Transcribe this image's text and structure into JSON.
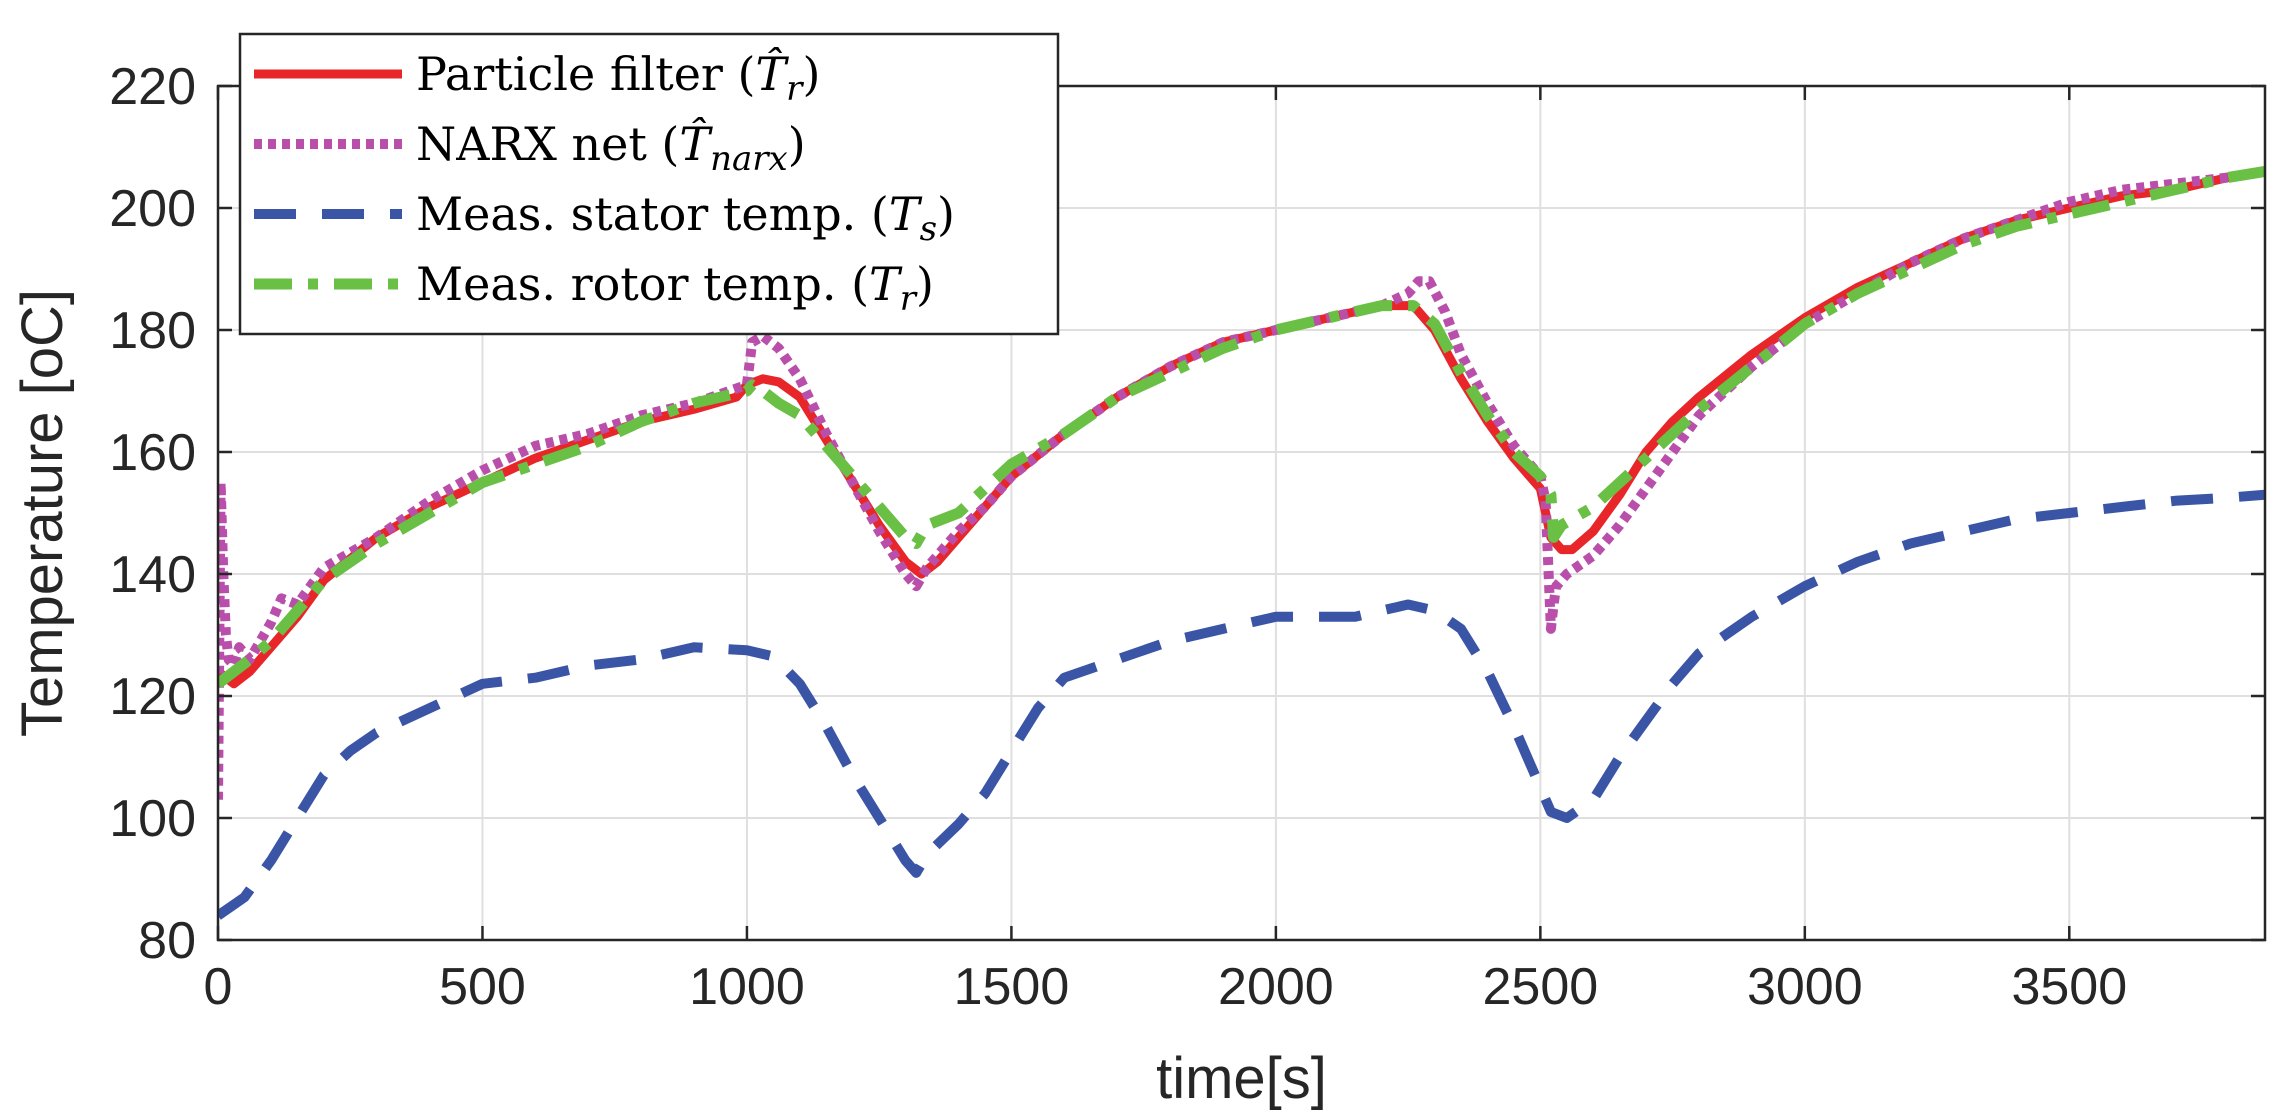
{
  "chart_data": {
    "type": "line",
    "title": "",
    "xlabel": "time[s]",
    "ylabel": "Temperature [oC]",
    "xlim": [
      0,
      3870
    ],
    "ylim": [
      80,
      220
    ],
    "xticks": [
      0,
      500,
      1000,
      1500,
      2000,
      2500,
      3000,
      3500
    ],
    "yticks": [
      80,
      100,
      120,
      140,
      160,
      180,
      200,
      220
    ],
    "grid": true,
    "legend_position": "top-left",
    "series": [
      {
        "name": "Particle filter",
        "legend_symbol": "T̂",
        "legend_subscript": "r",
        "color": "#e8262a",
        "style": "solid",
        "x": [
          0,
          30,
          60,
          100,
          150,
          200,
          300,
          400,
          500,
          600,
          700,
          800,
          900,
          980,
          1000,
          1030,
          1060,
          1100,
          1150,
          1200,
          1250,
          1300,
          1330,
          1360,
          1400,
          1450,
          1500,
          1600,
          1700,
          1800,
          1900,
          2000,
          2100,
          2200,
          2260,
          2300,
          2350,
          2400,
          2450,
          2500,
          2520,
          2540,
          2560,
          2600,
          2650,
          2700,
          2750,
          2800,
          2900,
          3000,
          3100,
          3200,
          3300,
          3400,
          3500,
          3600,
          3700,
          3800,
          3870
        ],
        "y": [
          124,
          122,
          124,
          128,
          133,
          139,
          146,
          151,
          155,
          159,
          162,
          165,
          167,
          169,
          171,
          172,
          171.5,
          169,
          162,
          155,
          148,
          142,
          140,
          142,
          146,
          151,
          156,
          163,
          169,
          174,
          178,
          180,
          182,
          184,
          184,
          180,
          172,
          165,
          159,
          154,
          146,
          144,
          144,
          147,
          153,
          160,
          165,
          169,
          176,
          182,
          187,
          191,
          195,
          198,
          200,
          202,
          203,
          205,
          206
        ]
      },
      {
        "name": "NARX net",
        "legend_symbol": "T̂",
        "legend_subscript": "narx",
        "color": "#b94fab",
        "style": "dotted",
        "x": [
          0,
          5,
          10,
          15,
          20,
          30,
          40,
          60,
          80,
          100,
          120,
          150,
          200,
          300,
          400,
          500,
          600,
          700,
          800,
          900,
          1000,
          1010,
          1030,
          1060,
          1100,
          1150,
          1200,
          1250,
          1300,
          1320,
          1340,
          1370,
          1400,
          1450,
          1500,
          1600,
          1700,
          1800,
          1900,
          2000,
          2100,
          2200,
          2250,
          2270,
          2290,
          2320,
          2350,
          2400,
          2450,
          2500,
          2510,
          2520,
          2525,
          2530,
          2550,
          2600,
          2650,
          2700,
          2750,
          2800,
          2900,
          3000,
          3100,
          3200,
          3300,
          3400,
          3500,
          3600,
          3700,
          3800,
          3870
        ],
        "y": [
          103,
          155,
          140,
          130,
          126,
          125,
          128,
          126,
          129,
          132,
          136,
          135,
          141,
          146,
          152,
          157,
          161,
          163,
          166,
          168,
          171,
          178,
          179,
          177,
          172,
          163,
          155,
          147,
          140,
          138,
          141,
          144,
          147,
          151,
          156,
          163,
          169,
          174,
          178,
          180,
          182,
          184,
          186,
          188,
          188,
          183,
          176,
          168,
          161,
          156,
          152,
          131,
          135,
          138,
          140,
          143,
          148,
          154,
          160,
          166,
          174,
          181,
          186,
          191,
          195,
          198,
          201,
          203,
          204,
          205,
          206
        ]
      },
      {
        "name": "Meas. stator temp.",
        "legend_symbol": "T",
        "legend_subscript": "s",
        "color": "#3b55a6",
        "style": "dashed",
        "x": [
          0,
          50,
          100,
          150,
          200,
          250,
          300,
          400,
          500,
          600,
          700,
          800,
          900,
          1000,
          1050,
          1100,
          1150,
          1200,
          1250,
          1300,
          1320,
          1340,
          1400,
          1450,
          1500,
          1550,
          1600,
          1700,
          1800,
          1900,
          2000,
          2100,
          2150,
          2200,
          2250,
          2300,
          2350,
          2400,
          2450,
          2500,
          2520,
          2550,
          2600,
          2650,
          2700,
          2750,
          2800,
          2900,
          3000,
          3100,
          3200,
          3300,
          3400,
          3500,
          3600,
          3700,
          3800,
          3870
        ],
        "y": [
          84,
          87,
          93,
          100,
          107,
          111,
          114,
          118,
          122,
          123,
          125,
          126,
          128,
          127.5,
          126.5,
          122,
          115,
          107,
          100,
          93,
          91,
          94,
          99,
          104,
          111,
          118,
          123,
          126,
          129,
          131,
          133,
          133,
          133,
          134,
          135,
          134,
          131,
          124,
          115,
          105,
          101,
          100,
          103,
          110,
          116,
          122,
          127,
          133,
          138,
          142,
          145,
          147,
          149,
          150,
          151,
          152,
          152.5,
          153
        ]
      },
      {
        "name": "Meas. rotor temp.",
        "legend_symbol": "T",
        "legend_subscript": "r",
        "color": "#6abf45",
        "style": "dashdot",
        "x": [
          0,
          30,
          60,
          100,
          150,
          200,
          300,
          400,
          500,
          600,
          700,
          800,
          900,
          1000,
          1010,
          1030,
          1060,
          1100,
          1150,
          1200,
          1250,
          1300,
          1320,
          1340,
          1400,
          1450,
          1500,
          1600,
          1700,
          1800,
          1900,
          2000,
          2100,
          2200,
          2260,
          2300,
          2350,
          2400,
          2450,
          2500,
          2520,
          2525,
          2540,
          2600,
          2650,
          2700,
          2750,
          2800,
          2900,
          3000,
          3100,
          3200,
          3300,
          3400,
          3500,
          3600,
          3700,
          3800,
          3870
        ],
        "y": [
          122,
          124,
          126,
          129,
          134,
          139,
          145,
          150,
          155,
          158,
          161,
          165,
          168,
          170,
          171,
          170,
          168,
          166,
          161,
          156,
          151,
          146,
          145,
          148,
          150,
          154,
          158,
          163,
          169,
          173,
          177,
          180,
          182,
          184,
          184,
          181,
          173,
          166,
          160,
          156,
          153,
          146,
          148,
          151,
          155,
          159,
          163,
          167,
          174,
          181,
          186,
          190,
          194,
          197,
          199,
          201,
          203,
          205,
          206
        ]
      }
    ]
  }
}
